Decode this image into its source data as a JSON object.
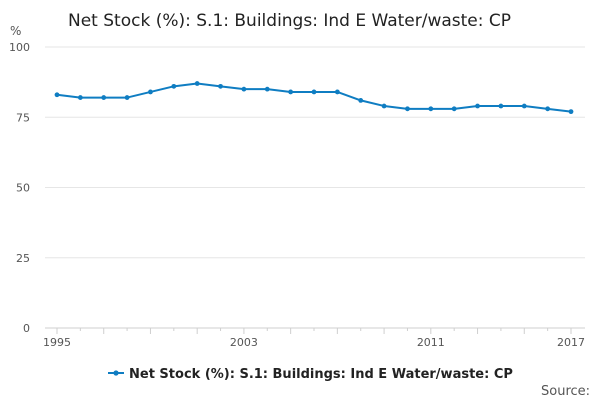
{
  "chart_data": {
    "type": "line",
    "title": "Net Stock (%): S.1: Buildings: Ind E Water/waste: CP",
    "ylabel": "%",
    "ylim": [
      0,
      100
    ],
    "yticks": [
      0,
      25,
      50,
      75,
      100
    ],
    "xlim": [
      1995,
      2017
    ],
    "xticks": [
      1995,
      2003,
      2011,
      2017
    ],
    "color": "#0f7dc2",
    "series": [
      {
        "name": "Net Stock (%): S.1: Buildings: Ind E Water/waste: CP",
        "x": [
          1995,
          1996,
          1997,
          1998,
          1999,
          2000,
          2001,
          2002,
          2003,
          2004,
          2005,
          2006,
          2007,
          2008,
          2009,
          2010,
          2011,
          2012,
          2013,
          2014,
          2015,
          2016,
          2017
        ],
        "values": [
          83,
          82,
          82,
          82,
          84,
          86,
          87,
          86,
          85,
          85,
          84,
          84,
          84,
          81,
          79,
          78,
          78,
          78,
          79,
          79,
          79,
          78,
          77
        ]
      }
    ],
    "legend_position": "bottom",
    "source_label": "Source:"
  }
}
